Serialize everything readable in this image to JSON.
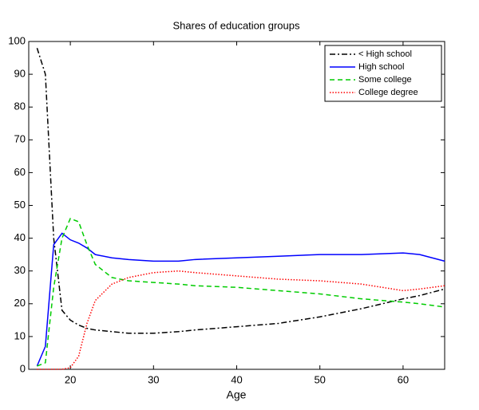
{
  "chart_data": {
    "type": "line",
    "title": "Shares of education groups",
    "x_label": "Age",
    "x": [
      16,
      17,
      18,
      19,
      20,
      21,
      22,
      23,
      25,
      27,
      30,
      33,
      35,
      40,
      45,
      50,
      55,
      60,
      62,
      65
    ],
    "series": [
      {
        "name": "< High school",
        "color": "#000000",
        "linestyle": "dashdot",
        "values": [
          98,
          90,
          40,
          18,
          15,
          13.5,
          12.5,
          12,
          11.5,
          11,
          11,
          11.5,
          12,
          13,
          14,
          16,
          18.5,
          21.5,
          22.5,
          24.5
        ]
      },
      {
        "name": "High school",
        "color": "#0000ff",
        "linestyle": "solid",
        "values": [
          1,
          7,
          38,
          41.5,
          39.5,
          38.5,
          37,
          35,
          34,
          33.5,
          33,
          33,
          33.5,
          34,
          34.5,
          35,
          35,
          35.5,
          35,
          33
        ]
      },
      {
        "name": "Some college",
        "color": "#00cc00",
        "linestyle": "dashed",
        "values": [
          1,
          2,
          25,
          40,
          46,
          45,
          38,
          32,
          28,
          27,
          26.5,
          26,
          25.5,
          25,
          24,
          23,
          21.5,
          20.5,
          20,
          19
        ]
      },
      {
        "name": "College degree",
        "color": "#ff0000",
        "linestyle": "dotted",
        "values": [
          0,
          0,
          0,
          0,
          0.5,
          4,
          14,
          21,
          26,
          28,
          29.5,
          30,
          29.5,
          28.5,
          27.5,
          27,
          26,
          24,
          24.5,
          25.5
        ]
      }
    ],
    "xlim": [
      15,
      65
    ],
    "xticks": [
      20,
      30,
      40,
      50,
      60
    ],
    "ylim": [
      0,
      100
    ],
    "yticks": [
      0,
      10,
      20,
      30,
      40,
      50,
      60,
      70,
      80,
      90,
      100
    ],
    "grid": false,
    "legend": "northeast"
  }
}
